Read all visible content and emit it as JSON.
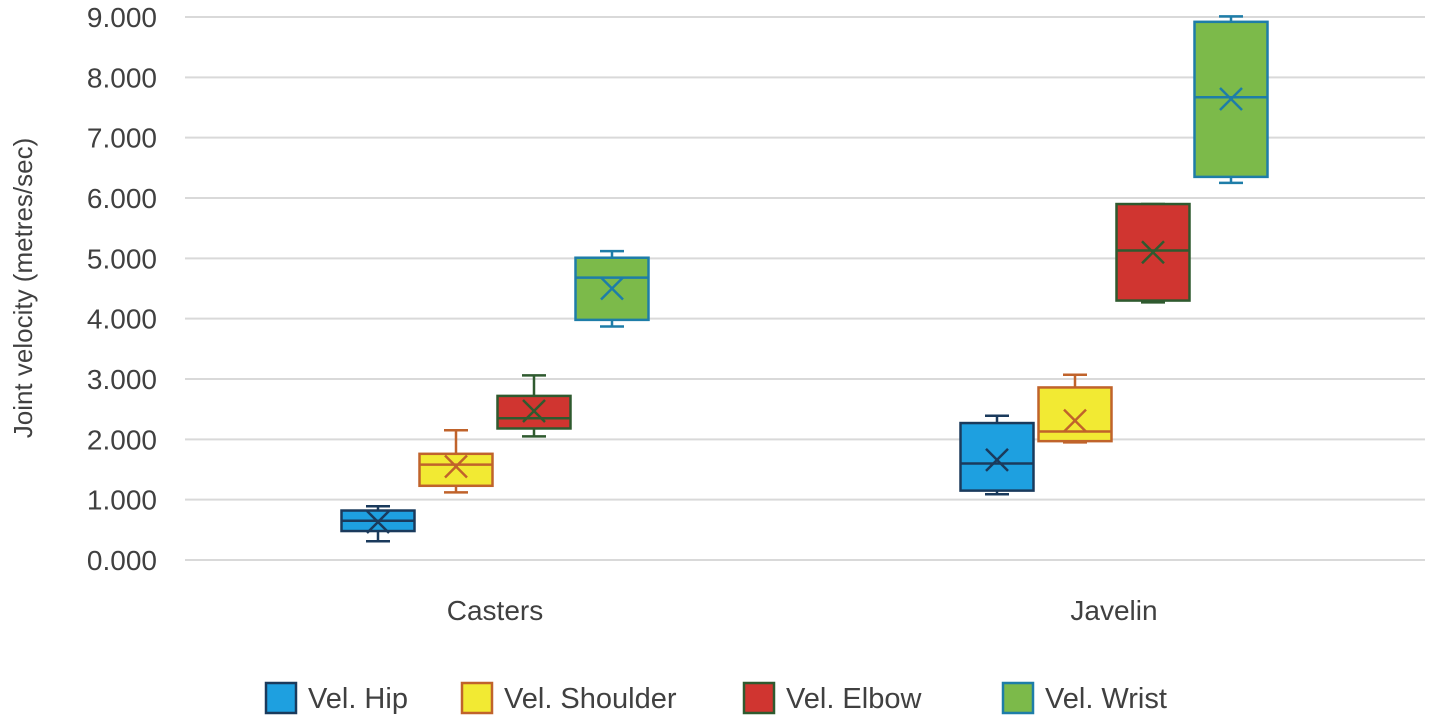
{
  "chart_data": {
    "type": "box",
    "title": "",
    "xlabel": "",
    "ylabel": "Joint velocity (metres/sec)",
    "ylim": [
      0,
      9
    ],
    "yticks": [
      "0.000",
      "1.000",
      "2.000",
      "3.000",
      "4.000",
      "5.000",
      "6.000",
      "7.000",
      "8.000",
      "9.000"
    ],
    "grid": true,
    "legend_position": "bottom",
    "categories": [
      "Casters",
      "Javelin"
    ],
    "series": [
      {
        "name": "Vel. Hip",
        "fill": "#1ea0e0",
        "stroke": "#1a3a5c",
        "data": [
          {
            "min": 0.31,
            "q1": 0.48,
            "median": 0.65,
            "q3": 0.82,
            "max": 0.89,
            "mean": 0.63
          },
          {
            "min": 1.09,
            "q1": 1.15,
            "median": 1.6,
            "q3": 2.27,
            "max": 2.39,
            "mean": 1.66
          }
        ]
      },
      {
        "name": "Vel. Shoulder",
        "fill": "#f2ea33",
        "stroke": "#c0632b",
        "data": [
          {
            "min": 1.12,
            "q1": 1.23,
            "median": 1.58,
            "q3": 1.76,
            "max": 2.15,
            "mean": 1.55
          },
          {
            "min": 1.95,
            "q1": 1.97,
            "median": 2.13,
            "q3": 2.86,
            "max": 3.07,
            "mean": 2.31
          }
        ]
      },
      {
        "name": "Vel. Elbow",
        "fill": "#d03530",
        "stroke": "#2f5a2f",
        "data": [
          {
            "min": 2.05,
            "q1": 2.18,
            "median": 2.35,
            "q3": 2.72,
            "max": 3.06,
            "mean": 2.47
          },
          {
            "min": 4.27,
            "q1": 4.3,
            "median": 5.13,
            "q3": 5.9,
            "max": 5.9,
            "mean": 5.1
          }
        ]
      },
      {
        "name": "Vel. Wrist",
        "fill": "#7cba4a",
        "stroke": "#1e7da8",
        "data": [
          {
            "min": 3.87,
            "q1": 3.98,
            "median": 4.68,
            "q3": 5.01,
            "max": 5.12,
            "mean": 4.5
          },
          {
            "min": 6.25,
            "q1": 6.35,
            "median": 7.67,
            "q3": 8.92,
            "max": 9.01,
            "mean": 7.64
          }
        ]
      }
    ]
  }
}
